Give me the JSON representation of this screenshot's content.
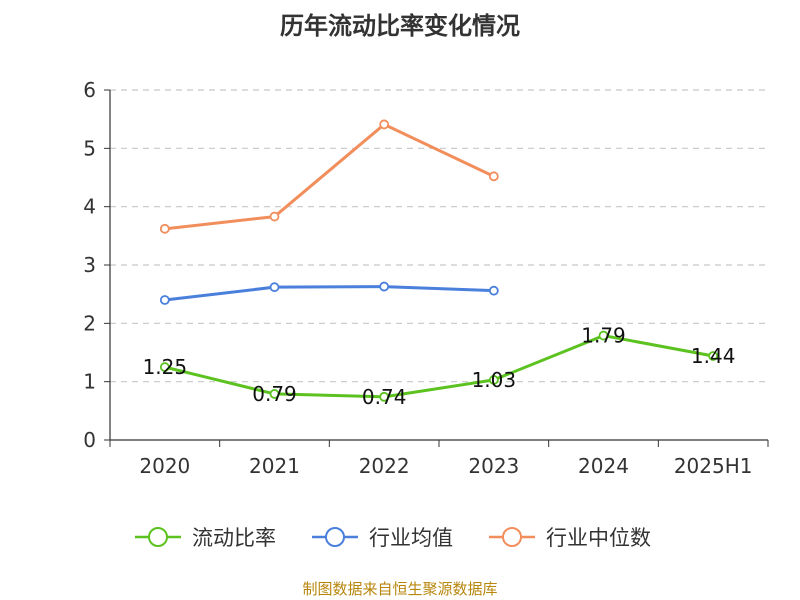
{
  "title": "历年流动比率变化情况",
  "source": "制图数据来自恒生聚源数据库",
  "chart_data": {
    "type": "line",
    "title": "历年流动比率变化情况",
    "categories": [
      "2020",
      "2021",
      "2022",
      "2023",
      "2024",
      "2025H1"
    ],
    "ylim": [
      0,
      6
    ],
    "yticks": [
      0,
      1,
      2,
      3,
      4,
      5,
      6
    ],
    "grid": true,
    "legend_position": "bottom",
    "series": [
      {
        "name": "流动比率",
        "color": "#5cc21f",
        "values": [
          1.25,
          0.79,
          0.74,
          1.03,
          1.79,
          1.44
        ],
        "labels": [
          "1.25",
          "0.79",
          "0.74",
          "1.03",
          "1.79",
          "1.44"
        ],
        "show_labels": true
      },
      {
        "name": "行业均值",
        "color": "#4a7fdc",
        "values": [
          2.4,
          2.62,
          2.63,
          2.56,
          null,
          null
        ],
        "show_labels": false
      },
      {
        "name": "行业中位数",
        "color": "#f28e5b",
        "values": [
          3.62,
          3.83,
          5.41,
          4.52,
          null,
          null
        ],
        "show_labels": false
      }
    ]
  }
}
